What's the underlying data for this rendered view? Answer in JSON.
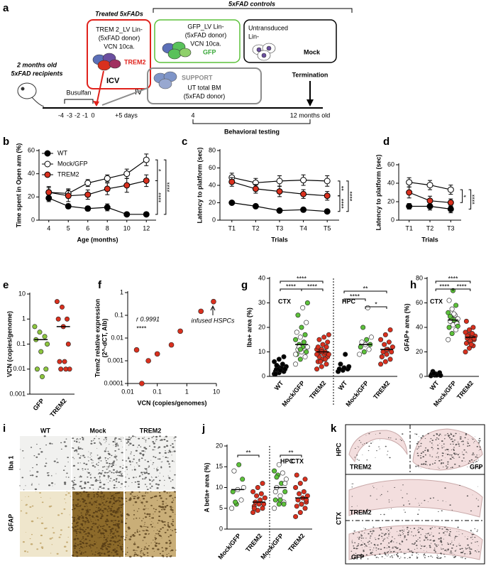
{
  "schematic": {
    "panel": "a",
    "treated_title": "Treated 5xFADs",
    "controls_title": "5xFAD controls",
    "trem2_box": [
      "TREM 2_LV Lin-",
      "(5xFAD donor)",
      "VCN 10ca."
    ],
    "trem2_label": "TREM2",
    "gfp_box": [
      "GFP_LV Lin-",
      "(5xFAD donor)",
      "VCN 10ca."
    ],
    "gfp_label": "GFP",
    "mock_box": [
      "Untransduced",
      "Lin-"
    ],
    "mock_label": "Mock",
    "support_label": "SUPPORT",
    "support_box": [
      "UT total BM",
      "(5xFAD donor)"
    ],
    "recipients": [
      "2 months old",
      "5xFAD recipients"
    ],
    "busulfan": "Busulfan",
    "icv": "ICV",
    "iv": "IV",
    "termination": "Termination",
    "timeline": [
      "-4",
      "-3",
      "-2",
      "-1",
      "0",
      "+5 days",
      "4",
      "12 months old"
    ],
    "behavioral": "Behavioral testing"
  },
  "chart_data": [
    {
      "panel": "b",
      "type": "line",
      "ylabel": "Time spent in Open arm (%)",
      "xlabel": "Age (months)",
      "categories": [
        "4",
        "5",
        "6",
        "8",
        "10",
        "12"
      ],
      "ylim": [
        0,
        60
      ],
      "yticks": [
        0,
        20,
        40,
        60
      ],
      "legend": "top-left",
      "line_color": "#000000",
      "series": [
        {
          "name": "WT",
          "color": "#000000",
          "values": [
            19,
            12,
            10,
            11,
            5,
            5
          ],
          "errors": [
            3,
            2,
            2,
            3,
            1,
            1
          ]
        },
        {
          "name": "Mock/GFP",
          "color": "#ffffff",
          "values": [
            24,
            23,
            32,
            36,
            40,
            52
          ],
          "errors": [
            4,
            4,
            3,
            3,
            4,
            5
          ]
        },
        {
          "name": "TREM2",
          "color": "#d9301e",
          "values": [
            24,
            21,
            22,
            27,
            30,
            34
          ],
          "errors": [
            5,
            5,
            4,
            5,
            6,
            5
          ]
        }
      ],
      "significance": [
        "*",
        "****",
        "****"
      ]
    },
    {
      "panel": "c",
      "type": "line",
      "ylabel": "Latency to platform (sec)",
      "xlabel": "Trials",
      "categories": [
        "T1",
        "T2",
        "T3",
        "T4",
        "T5"
      ],
      "ylim": [
        0,
        80
      ],
      "yticks": [
        0,
        20,
        40,
        60,
        80
      ],
      "line_color": "#000000",
      "series": [
        {
          "color": "#000000",
          "values": [
            20,
            16,
            11,
            12,
            10
          ],
          "errors": [
            2,
            2,
            2,
            2,
            2
          ]
        },
        {
          "color": "#ffffff",
          "values": [
            49,
            43,
            45,
            46,
            45
          ],
          "errors": [
            5,
            5,
            6,
            6,
            6
          ]
        },
        {
          "color": "#d9301e",
          "values": [
            44,
            36,
            33,
            30,
            28
          ],
          "errors": [
            5,
            5,
            6,
            5,
            5
          ]
        }
      ],
      "significance": [
        "**",
        "****",
        "****"
      ]
    },
    {
      "panel": "d",
      "type": "line",
      "ylabel": "Latency to platform (sec)",
      "xlabel": "Trials",
      "categories": [
        "T1",
        "T2",
        "T3"
      ],
      "ylim": [
        0,
        60
      ],
      "yticks": [
        0,
        20,
        40,
        60
      ],
      "line_color": "#000000",
      "series": [
        {
          "color": "#000000",
          "values": [
            15,
            15,
            12
          ],
          "errors": [
            3,
            4,
            4
          ]
        },
        {
          "color": "#ffffff",
          "values": [
            41,
            38,
            33
          ],
          "errors": [
            5,
            5,
            5
          ]
        },
        {
          "color": "#d9301e",
          "values": [
            30,
            21,
            19
          ],
          "errors": [
            6,
            5,
            4
          ]
        }
      ],
      "significance": [
        "*",
        "****"
      ]
    },
    {
      "panel": "e",
      "type": "dot",
      "ylabel": "VCN (copies/genome)",
      "log_y": true,
      "ylim": [
        0.001,
        10
      ],
      "yticks": [
        0.001,
        0.01,
        0.1,
        1,
        10
      ],
      "groups": [
        {
          "name": "GFP",
          "colors": [
            "#8dc63f"
          ],
          "values": [
            0.5,
            0.3,
            0.2,
            0.15,
            0.05,
            0.01,
            0.01,
            0.005,
            0.1
          ],
          "mean": 0.15
        },
        {
          "name": "TREM2",
          "colors": [
            "#d9301e"
          ],
          "values": [
            5,
            3,
            1,
            1,
            0.5,
            0.1,
            0.02,
            0.02,
            0.01,
            0.01,
            0.01
          ],
          "mean": 0.5
        }
      ]
    },
    {
      "panel": "f",
      "type": "scatter",
      "ylabel": [
        "Trem2 relative expression",
        "(2^-dCT, Alb)"
      ],
      "xlabel": "VCN (copies/genomes)",
      "log_x": true,
      "log_y": true,
      "xlim": [
        0.01,
        10
      ],
      "xticks": [
        0.01,
        0.1,
        1,
        10
      ],
      "ylim": [
        0.0001,
        1
      ],
      "yticks": [
        0.0001,
        0.001,
        0.01,
        0.1,
        1
      ],
      "color": "#d9301e",
      "x": [
        0.02,
        0.03,
        0.05,
        0.1,
        0.3,
        0.6,
        3,
        8
      ],
      "values": [
        0.003,
        0.0001,
        0.001,
        0.002,
        0.005,
        0.02,
        0.15,
        0.4
      ],
      "annotations": [
        "r 0.9991",
        "****",
        "infused HSPCs"
      ]
    },
    {
      "panel": "g",
      "type": "dot",
      "ylabel": "Iba+ area (%)",
      "ylim": [
        0,
        40
      ],
      "yticks": [
        0,
        10,
        20,
        30,
        40
      ],
      "region_labels": [
        "CTX",
        "HPC"
      ],
      "groups": [
        {
          "name": "WT",
          "colors": [
            "#000000"
          ],
          "values": [
            1,
            1.5,
            2,
            2,
            2.5,
            3,
            3,
            3.5,
            4,
            4,
            5,
            6,
            7,
            8,
            1,
            2.5,
            3,
            4.5
          ],
          "mean": 3
        },
        {
          "name": "Mock/GFP",
          "colors": [
            "#ffffff",
            "#5cc13a"
          ],
          "values": [
            5,
            7,
            8,
            9,
            10,
            10,
            11,
            12,
            12,
            13,
            14,
            15,
            16,
            17,
            18,
            20,
            22,
            25,
            28,
            30,
            12,
            14,
            9,
            11
          ],
          "mean": 13
        },
        {
          "name": "TREM2",
          "colors": [
            "#d9301e"
          ],
          "values": [
            3,
            4,
            5,
            6,
            7,
            8,
            8,
            9,
            9,
            10,
            10,
            11,
            11,
            12,
            12,
            13,
            14,
            15,
            16,
            17,
            6,
            7,
            9,
            10,
            12
          ],
          "mean": 10
        },
        {
          "name": "WT",
          "colors": [
            "#000000"
          ],
          "values": [
            2,
            2.5,
            3,
            3,
            3.5,
            4,
            5,
            9
          ],
          "mean": 3
        },
        {
          "name": "Mock/GFP",
          "colors": [
            "#ffffff",
            "#5cc13a"
          ],
          "values": [
            9,
            10,
            11,
            12,
            13,
            13,
            14,
            15,
            16,
            20,
            28
          ],
          "mean": 13
        },
        {
          "name": "TREM2",
          "colors": [
            "#d9301e"
          ],
          "values": [
            5,
            6,
            7,
            8,
            9,
            10,
            10,
            11,
            12,
            13,
            14,
            15,
            17,
            19,
            8,
            11
          ],
          "mean": 11
        }
      ],
      "significance": [
        "****",
        "****",
        "****",
        "**",
        "****",
        "*"
      ]
    },
    {
      "panel": "h",
      "type": "dot",
      "ylabel": "GFAP+ area (%)",
      "ylim": [
        0,
        80
      ],
      "yticks": [
        0,
        20,
        40,
        60,
        80
      ],
      "region_labels": [
        "CTX"
      ],
      "groups": [
        {
          "name": "WT",
          "colors": [
            "#000000"
          ],
          "values": [
            0.5,
            1,
            1.5,
            2,
            2,
            3,
            4,
            1,
            0.8,
            2.5
          ],
          "mean": 2
        },
        {
          "name": "Mock/GFP",
          "colors": [
            "#ffffff",
            "#5cc13a"
          ],
          "values": [
            30,
            35,
            38,
            40,
            42,
            44,
            45,
            46,
            47,
            48,
            50,
            52,
            55,
            58,
            62,
            70,
            43,
            49,
            51,
            41
          ],
          "mean": 46
        },
        {
          "name": "TREM2",
          "colors": [
            "#d9301e"
          ],
          "values": [
            20,
            23,
            25,
            27,
            28,
            30,
            31,
            32,
            33,
            34,
            35,
            36,
            38,
            40,
            45,
            29,
            31,
            33,
            26
          ],
          "mean": 32
        }
      ],
      "significance": [
        "****",
        "****",
        "****"
      ]
    },
    {
      "panel": "j",
      "type": "dot",
      "ylabel": "A beta+ area (%)",
      "ylim": [
        0,
        20
      ],
      "yticks": [
        0,
        5,
        10,
        15,
        20
      ],
      "region_labels": [
        "HPC",
        "CTX"
      ],
      "groups": [
        {
          "name": "Mock/GFP",
          "colors": [
            "#ffffff",
            "#5cc13a"
          ],
          "values": [
            5,
            6,
            7,
            9,
            9.5,
            12,
            14,
            15.5,
            10,
            6.5
          ],
          "mean": 9.5
        },
        {
          "name": "TREM2",
          "colors": [
            "#d9301e"
          ],
          "values": [
            4,
            4.5,
            5,
            5.5,
            6,
            6,
            6.5,
            7,
            7.5,
            8,
            8.5,
            9,
            10,
            11,
            5
          ],
          "mean": 6.5
        },
        {
          "name": "Mock/GFP",
          "colors": [
            "#ffffff",
            "#5cc13a"
          ],
          "values": [
            5,
            6,
            6.5,
            7,
            8,
            9,
            10,
            11,
            12,
            13,
            13.5,
            14,
            15.5,
            6,
            9,
            7,
            11,
            12.5
          ],
          "mean": 10
        },
        {
          "name": "TREM2",
          "colors": [
            "#d9301e"
          ],
          "values": [
            3,
            4,
            5,
            5.5,
            6,
            6.5,
            7,
            7.5,
            8,
            8.5,
            9,
            10,
            11,
            12,
            13,
            6,
            7
          ],
          "mean": 7.5
        }
      ],
      "significance": [
        "**",
        "**"
      ]
    }
  ],
  "panel_i": {
    "panel": "i",
    "columns": [
      "WT",
      "Mock",
      "TREM2"
    ],
    "rows": [
      "Iba 1",
      "GFAP"
    ]
  },
  "panel_k": {
    "panel": "k",
    "regions": [
      "HPC",
      "CTX"
    ],
    "labels": [
      "TREM2",
      "GFP",
      "TREM2",
      "GFP"
    ]
  }
}
